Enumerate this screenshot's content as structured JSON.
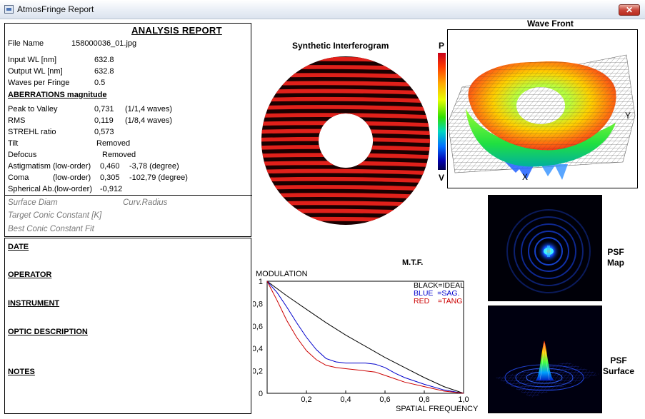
{
  "window": {
    "title": "AtmosFringe  Report",
    "close_glyph": "✕"
  },
  "report": {
    "heading": "ANALYSIS  REPORT",
    "file_name_label": "File Name",
    "file_name_value": "158000036_01.jpg",
    "input_wl_label": "Input  WL [nm]",
    "input_wl_value": "632.8",
    "output_wl_label": "Output WL [nm]",
    "output_wl_value": "632.8",
    "waves_per_fringe_label": "Waves per Fringe",
    "waves_per_fringe_value": "0.5",
    "aberrations_heading": "ABERRATIONS magnitude",
    "pv_label": "Peak to Valley",
    "pv_value": "0,731",
    "pv_waves": "(1/1,4 waves)",
    "rms_label": "RMS",
    "rms_value": "0,119",
    "rms_waves": "(1/8,4 waves)",
    "strehl_label": "STREHL ratio",
    "strehl_value": "0,573",
    "tilt_label": "Tilt",
    "tilt_value": "Removed",
    "defocus_label": "Defocus",
    "defocus_value": "Removed",
    "astig_label": "Astigmatism  (low-order)",
    "astig_value": "0,460",
    "astig_angle": "-3,78  (degree)",
    "coma_label": "Coma",
    "coma_order": "(low-order)",
    "coma_value": "0,305",
    "coma_angle": "-102,79  (degree)",
    "spherical_label": "Spherical Ab.(low-order)",
    "spherical_value": "-0,912",
    "surface_diam_label": "Surface Diam",
    "curv_radius_label": "Curv.Radius",
    "target_conic_label": "Target Conic Constant [K]",
    "best_conic_label": "Best Conic Constant Fit"
  },
  "notes": {
    "date_label": "DATE",
    "operator_label": "OPERATOR",
    "instrument_label": "INSTRUMENT",
    "optic_description_label": "OPTIC DESCRIPTION",
    "notes_label": "NOTES"
  },
  "interferogram": {
    "title": "Synthetic Interferogram",
    "fringe_color": "#e0201a",
    "fringe_dark": "#1a0000"
  },
  "colorbar": {
    "top_label": "P",
    "bottom_label": "V"
  },
  "wavefront": {
    "title": "Wave Front",
    "x_axis_label": "X",
    "y_axis_label": "Y"
  },
  "psf": {
    "map_label_1": "PSF",
    "map_label_2": "Map",
    "surface_label_1": "PSF",
    "surface_label_2": "Surface"
  },
  "mtf": {
    "title": "M.T.F.",
    "chart_data": {
      "type": "line",
      "title": "M.T.F.",
      "ylabel": "MODULATION",
      "xlabel": "SPATIAL FREQUENCY",
      "xlim": [
        0,
        1
      ],
      "ylim": [
        0,
        1
      ],
      "x_ticks": [
        "0,2",
        "0,4",
        "0,6",
        "0,8",
        "1,0"
      ],
      "x_tick_values": [
        0.2,
        0.4,
        0.6,
        0.8,
        1.0
      ],
      "y_ticks": [
        "0",
        "0,2",
        "0,4",
        "0,6",
        "0,8",
        "1"
      ],
      "y_tick_values": [
        0,
        0.2,
        0.4,
        0.6,
        0.8,
        1.0
      ],
      "legend": [
        "BLACK=IDEAL",
        "BLUE  =SAG.",
        "RED    =TANG"
      ],
      "legend_colors": [
        "#000000",
        "#0000cc",
        "#cc0000"
      ],
      "legend_position": "top-right",
      "series": [
        {
          "color": "#000000",
          "x": [
            0,
            0.1,
            0.2,
            0.3,
            0.4,
            0.5,
            0.6,
            0.7,
            0.8,
            0.9,
            1.0
          ],
          "y": [
            1.0,
            0.87,
            0.75,
            0.63,
            0.52,
            0.42,
            0.32,
            0.23,
            0.14,
            0.06,
            0.0
          ]
        },
        {
          "color": "#0000cc",
          "x": [
            0,
            0.05,
            0.1,
            0.15,
            0.2,
            0.25,
            0.3,
            0.35,
            0.4,
            0.45,
            0.5,
            0.55,
            0.6,
            0.65,
            0.7,
            0.8,
            0.9,
            1.0
          ],
          "y": [
            1.0,
            0.9,
            0.77,
            0.63,
            0.5,
            0.39,
            0.31,
            0.28,
            0.27,
            0.27,
            0.27,
            0.26,
            0.23,
            0.18,
            0.14,
            0.08,
            0.03,
            0.0
          ]
        },
        {
          "color": "#cc0000",
          "x": [
            0,
            0.05,
            0.1,
            0.15,
            0.2,
            0.25,
            0.3,
            0.35,
            0.4,
            0.45,
            0.5,
            0.55,
            0.6,
            0.65,
            0.7,
            0.8,
            0.9,
            1.0
          ],
          "y": [
            1.0,
            0.83,
            0.65,
            0.5,
            0.38,
            0.3,
            0.25,
            0.23,
            0.22,
            0.21,
            0.2,
            0.19,
            0.16,
            0.13,
            0.1,
            0.06,
            0.02,
            0.0
          ]
        }
      ]
    }
  }
}
